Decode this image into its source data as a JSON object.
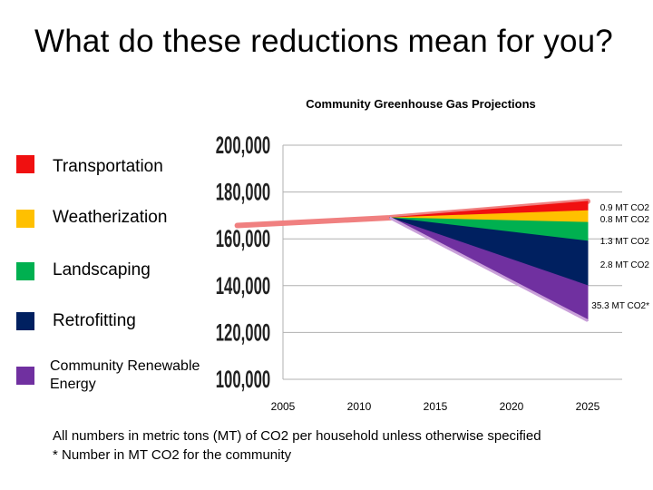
{
  "slide": {
    "title": "What do these reductions mean for you?"
  },
  "legend": [
    {
      "label": "Transportation",
      "color": "#f01010"
    },
    {
      "label": "Weatherization",
      "color": "#ffc000"
    },
    {
      "label": "Landscaping",
      "color": "#00b050"
    },
    {
      "label": "Retrofitting",
      "color": "#002060"
    },
    {
      "label": "Community Renewable Energy",
      "color": "#7030a0"
    }
  ],
  "footnote": {
    "line1": "All numbers in metric tons (MT) of CO2 per household unless otherwise specified",
    "line2": "* Number in MT CO2 for the community"
  },
  "chart_data": {
    "type": "area",
    "title": "Community Greenhouse Gas Projections",
    "xlim": [
      2005,
      2025
    ],
    "ylim": [
      100000,
      200000
    ],
    "x_ticks": [
      "2005",
      "2010",
      "2015",
      "2020",
      "2025"
    ],
    "y_ticks": [
      "100,000",
      "120,000",
      "140,000",
      "160,000",
      "180,000",
      "200,000"
    ],
    "grid": true,
    "baseline": {
      "color": "#f08080",
      "points": [
        [
          2002,
          165700
        ],
        [
          2009,
          168000
        ],
        [
          2012,
          169000
        ],
        [
          2025,
          176000
        ]
      ]
    },
    "reduction_start_year": 2012,
    "wedges": [
      {
        "name": "Transportation",
        "color": "#f01010",
        "top": 176000,
        "bottom": 172000,
        "annotation": "0.9 MT CO2"
      },
      {
        "name": "Weatherization",
        "color": "#ffc000",
        "top": 172000,
        "bottom": 167000,
        "annotation": "0.8 MT CO2"
      },
      {
        "name": "Landscaping",
        "color": "#00b050",
        "top": 167000,
        "bottom": 159000,
        "annotation": "1.3 MT CO2"
      },
      {
        "name": "Retrofitting",
        "color": "#002060",
        "top": 159000,
        "bottom": 140000,
        "annotation": "2.8 MT CO2"
      },
      {
        "name": "Community Renewable Energy",
        "color": "#7030a0",
        "top": 140000,
        "bottom": 125000,
        "annotation": "35.3 MT CO2*"
      }
    ]
  }
}
